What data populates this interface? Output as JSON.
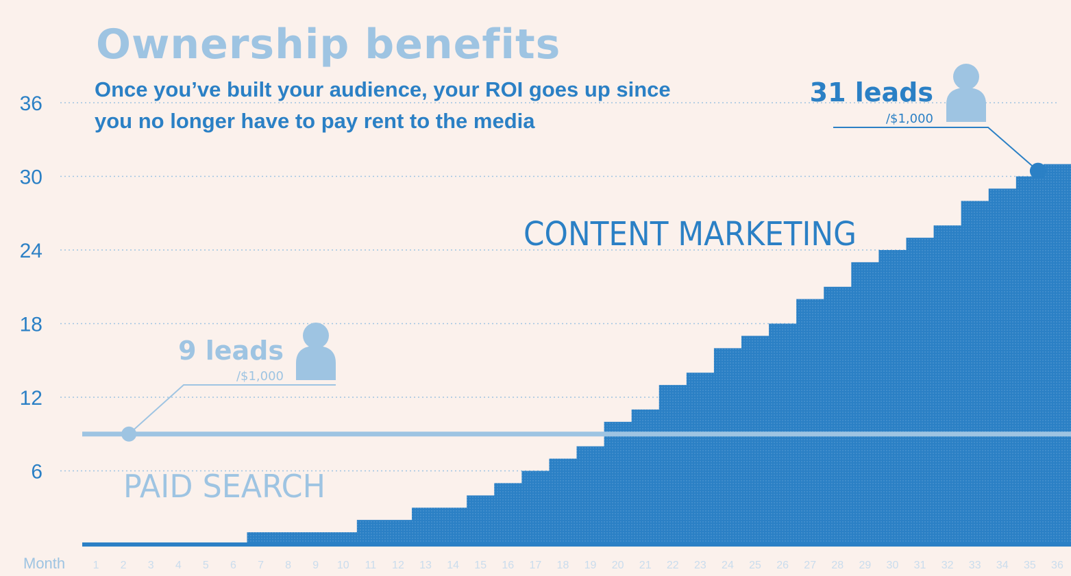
{
  "headline": "Ownership benefits",
  "subtitle": "Once you’ve built your audience, your ROI goes up since you no longer have to pay rent to the media",
  "colors": {
    "background": "#fbf1ec",
    "content": "#2b80c5",
    "paid": "#9ec4e2",
    "grid": "#9ec4e2"
  },
  "callouts": {
    "paid": {
      "value": "9 leads",
      "unit": "/$1,000",
      "icon": "person-icon"
    },
    "content": {
      "value": "31 leads",
      "unit": "/$1,000",
      "icon": "person-icon"
    }
  },
  "chart_data": {
    "type": "area",
    "xlabel": "Month",
    "ylabel": "",
    "x": [
      1,
      2,
      3,
      4,
      5,
      6,
      7,
      8,
      9,
      10,
      11,
      12,
      13,
      14,
      15,
      16,
      17,
      18,
      19,
      20,
      21,
      22,
      23,
      24,
      25,
      26,
      27,
      28,
      29,
      30,
      31,
      32,
      33,
      34,
      35,
      36
    ],
    "ylim": [
      0,
      36
    ],
    "yticks": [
      6,
      12,
      18,
      24,
      30,
      36
    ],
    "grid": true,
    "series": [
      {
        "name": "CONTENT MARKETING",
        "values": [
          0,
          0,
          0,
          0,
          0,
          0,
          1,
          1,
          1,
          1,
          2,
          2,
          3,
          3,
          4,
          5,
          6,
          7,
          8,
          10,
          11,
          13,
          14,
          16,
          17,
          18,
          20,
          21,
          23,
          24,
          25,
          26,
          28,
          29,
          30,
          31
        ]
      },
      {
        "name": "PAID SEARCH",
        "values": [
          9,
          9,
          9,
          9,
          9,
          9,
          9,
          9,
          9,
          9,
          9,
          9,
          9,
          9,
          9,
          9,
          9,
          9,
          9,
          9,
          9,
          9,
          9,
          9,
          9,
          9,
          9,
          9,
          9,
          9,
          9,
          9,
          9,
          9,
          9,
          9
        ]
      }
    ]
  }
}
